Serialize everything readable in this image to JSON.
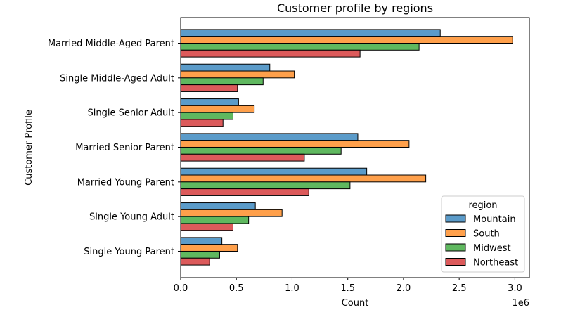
{
  "chart_data": {
    "type": "bar",
    "orientation": "horizontal",
    "title": "Customer profile by regions",
    "xlabel": "Count",
    "ylabel": "Customer Profile",
    "x_offset_label": "1e6",
    "xlim": [
      0,
      3.13
    ],
    "x_tick_values": [
      0.0,
      0.5,
      1.0,
      1.5,
      2.0,
      2.5,
      3.0
    ],
    "x_tick_labels": [
      "0.0",
      "0.5",
      "1.0",
      "1.5",
      "2.0",
      "2.5",
      "3.0"
    ],
    "categories": [
      "Married Middle-Aged Parent",
      "Single Middle-Aged Adult",
      "Single Senior Adult",
      "Married Senior Parent",
      "Married Young Parent",
      "Single Young Adult",
      "Single Young Parent"
    ],
    "series": [
      {
        "name": "Mountain",
        "color": "#5b9bc9",
        "values": [
          2.33,
          0.8,
          0.52,
          1.59,
          1.67,
          0.67,
          0.37
        ]
      },
      {
        "name": "South",
        "color": "#ffa04b",
        "values": [
          2.98,
          1.02,
          0.66,
          2.05,
          2.2,
          0.91,
          0.51
        ]
      },
      {
        "name": "Midwest",
        "color": "#5fb85f",
        "values": [
          2.14,
          0.74,
          0.47,
          1.44,
          1.52,
          0.61,
          0.35
        ]
      },
      {
        "name": "Northeast",
        "color": "#dc5a5b",
        "values": [
          1.61,
          0.51,
          0.38,
          1.11,
          1.15,
          0.47,
          0.26
        ]
      }
    ],
    "grid": false,
    "legend": {
      "title": "region",
      "placement": "lower-right"
    }
  }
}
